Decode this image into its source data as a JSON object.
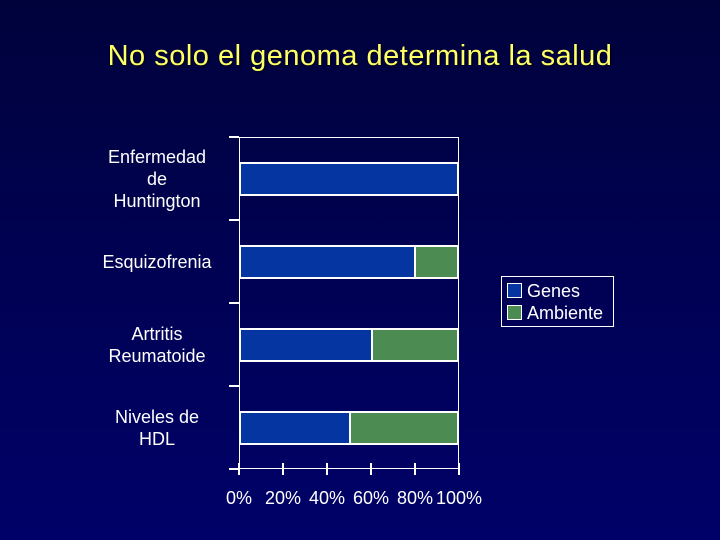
{
  "slide": {
    "title": "No solo el genoma determina la salud",
    "title_color": "#FFFF66",
    "background_top": "#00023C",
    "background_bottom": "#000168"
  },
  "chart_data": {
    "type": "bar",
    "orientation": "horizontal",
    "stacked": true,
    "title": "",
    "xlabel": "",
    "ylabel": "",
    "xlim": [
      0,
      100
    ],
    "grid": false,
    "x_ticks": [
      "0%",
      "20%",
      "40%",
      "60%",
      "80%",
      "100%"
    ],
    "x_tick_values": [
      0,
      20,
      40,
      60,
      80,
      100
    ],
    "categories": [
      "Enfermedad de Huntington",
      "Esquizofrenia",
      "Artritis Reumatoide",
      "Niveles de HDL"
    ],
    "category_label_lines": [
      [
        "Enfermedad",
        "de",
        "Huntington"
      ],
      [
        "Esquizofrenia"
      ],
      [
        "Artritis",
        "Reumatoide"
      ],
      [
        "Niveles de",
        "HDL"
      ]
    ],
    "series": [
      {
        "name": "Genes",
        "color": "#0535A0",
        "values": [
          100,
          80,
          60,
          50
        ]
      },
      {
        "name": "Ambiente",
        "color": "#4C8C52",
        "values": [
          0,
          20,
          40,
          50
        ]
      }
    ],
    "legend_position": "right",
    "axis_color": "#FFFFFF",
    "text_color": "#FFFFFF"
  }
}
